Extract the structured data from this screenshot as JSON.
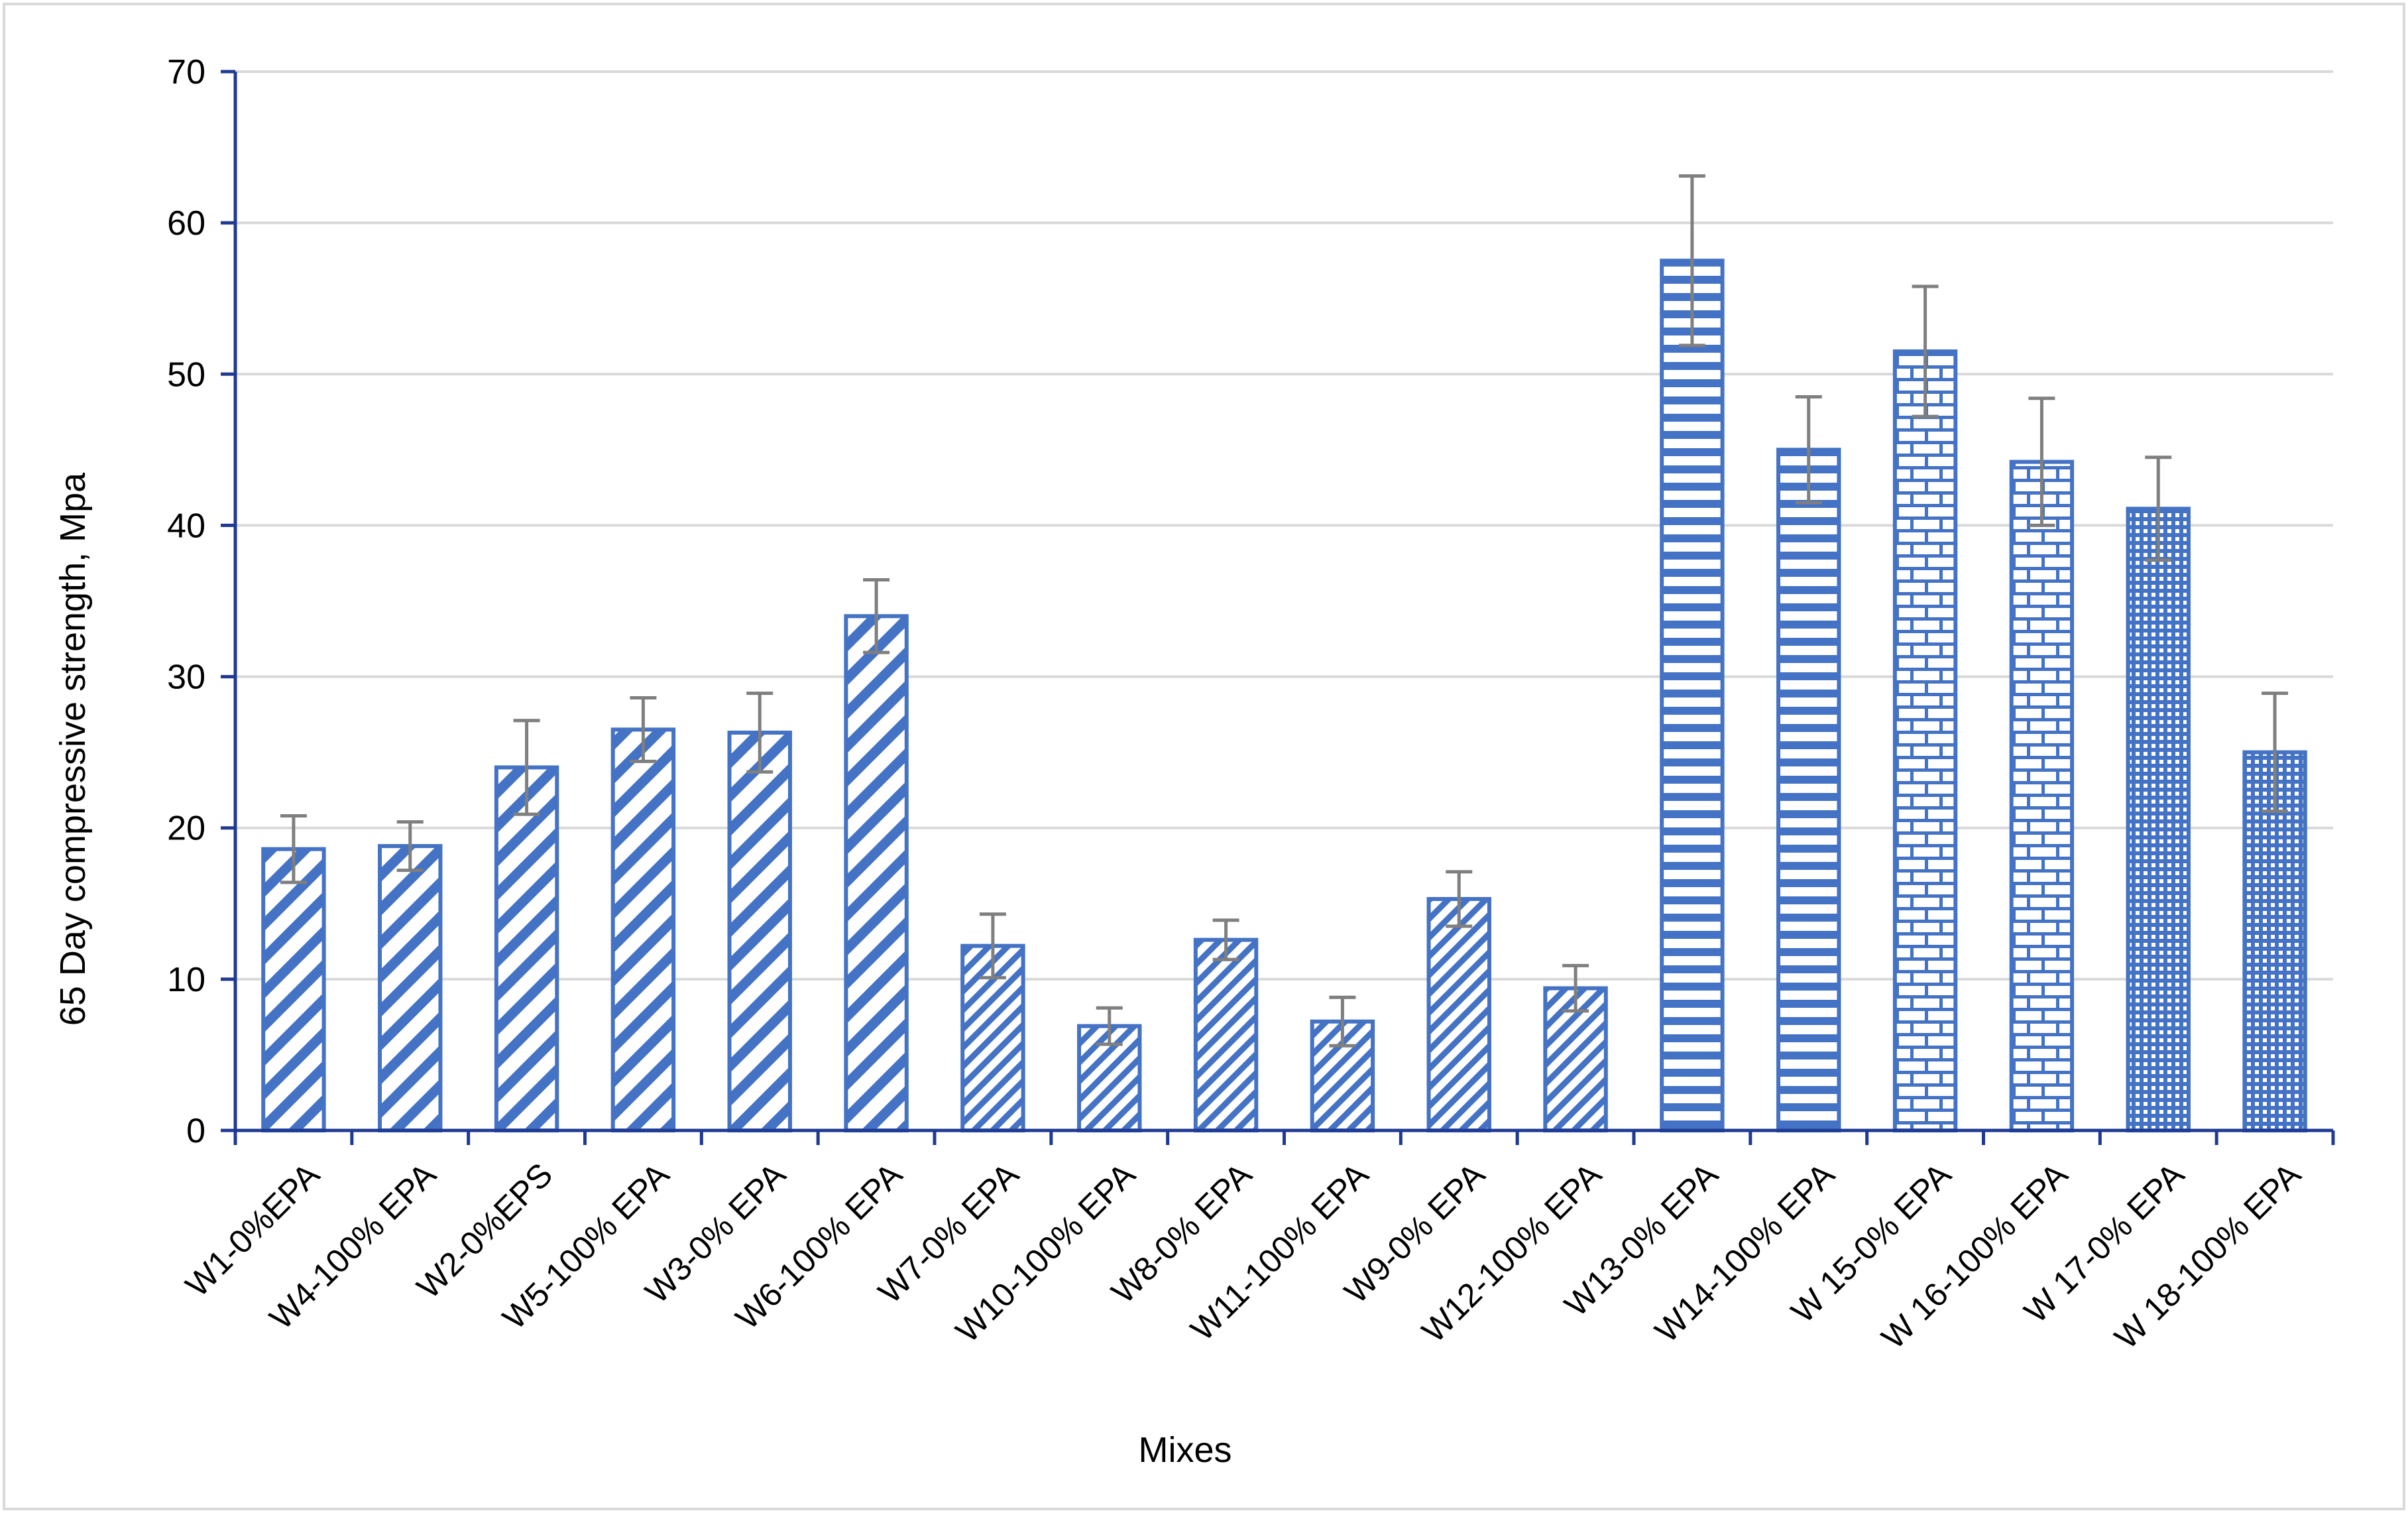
{
  "chart_data": {
    "type": "bar",
    "title": "",
    "xlabel": "Mixes",
    "ylabel": "65 Day compressive strength, Mpa",
    "ylim": [
      0,
      70
    ],
    "yticks": [
      0,
      10,
      20,
      30,
      40,
      50,
      60,
      70
    ],
    "grid": "horizontal",
    "legend": "none",
    "categories": [
      "W1-0%EPA",
      "W4-100% EPA",
      "W2-0%EPS",
      "W5-100% EPA",
      "W3-0% EPA",
      "W6-100% EPA",
      "W7-0% EPA",
      "W10-100% EPA",
      "W8-0% EPA",
      "W11-100% EPA",
      "W9-0% EPA",
      "W12-100% EPA",
      "W13-0% EPA",
      "W14-100% EPA",
      "W 15-0% EPA",
      "W 16-100% EPA",
      "W 17-0% EPA",
      "W 18-100% EPA"
    ],
    "values": [
      18.6,
      18.8,
      24.0,
      26.5,
      26.3,
      34.0,
      12.2,
      6.9,
      12.6,
      7.2,
      15.3,
      9.4,
      57.5,
      45.0,
      51.5,
      44.2,
      41.1,
      25.0
    ],
    "error": [
      2.2,
      1.6,
      3.1,
      2.1,
      2.6,
      2.4,
      2.1,
      1.2,
      1.3,
      1.6,
      1.8,
      1.5,
      5.6,
      3.5,
      4.3,
      4.2,
      3.4,
      3.9
    ],
    "patterns": [
      "wide-diagonal",
      "wide-diagonal",
      "wide-diagonal",
      "wide-diagonal",
      "wide-diagonal",
      "wide-diagonal",
      "narrow-diagonal",
      "narrow-diagonal",
      "narrow-diagonal",
      "narrow-diagonal",
      "narrow-diagonal",
      "narrow-diagonal",
      "horizontal-stripes",
      "horizontal-stripes",
      "brick",
      "brick",
      "dotted-grid",
      "dotted-grid"
    ]
  },
  "colors": {
    "bar": "#4472C4",
    "axis": "#1F3A93",
    "grid": "#D9D9D9",
    "error_bar": "#7F7F7F",
    "frame": "#D9D9D9"
  }
}
